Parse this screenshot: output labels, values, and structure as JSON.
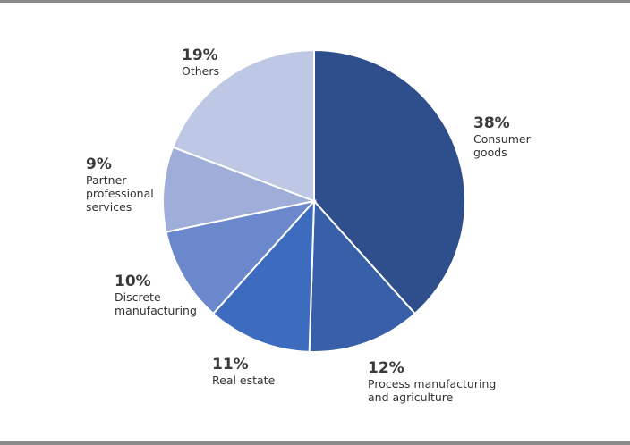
{
  "chart_data": {
    "type": "pie",
    "title": "",
    "slices": [
      {
        "label": "Consumer\ngoods",
        "value": 38,
        "value_label": "38%",
        "color": "#2E4F8C"
      },
      {
        "label": "Process manufacturing\nand agriculture",
        "value": 12,
        "value_label": "12%",
        "color": "#3760A8"
      },
      {
        "label": "Real estate",
        "value": 11,
        "value_label": "11%",
        "color": "#3D6CBF"
      },
      {
        "label": "Discrete\nmanufacturing",
        "value": 10,
        "value_label": "10%",
        "color": "#6C88CC"
      },
      {
        "label": "Partner\nprofessional\nservices",
        "value": 9,
        "value_label": "9%",
        "color": "#9EAED8"
      },
      {
        "label": "Others",
        "value": 19,
        "value_label": "19%",
        "color": "#BEC8E4"
      }
    ],
    "start_angle": "12 o'clock",
    "direction": "clockwise"
  }
}
